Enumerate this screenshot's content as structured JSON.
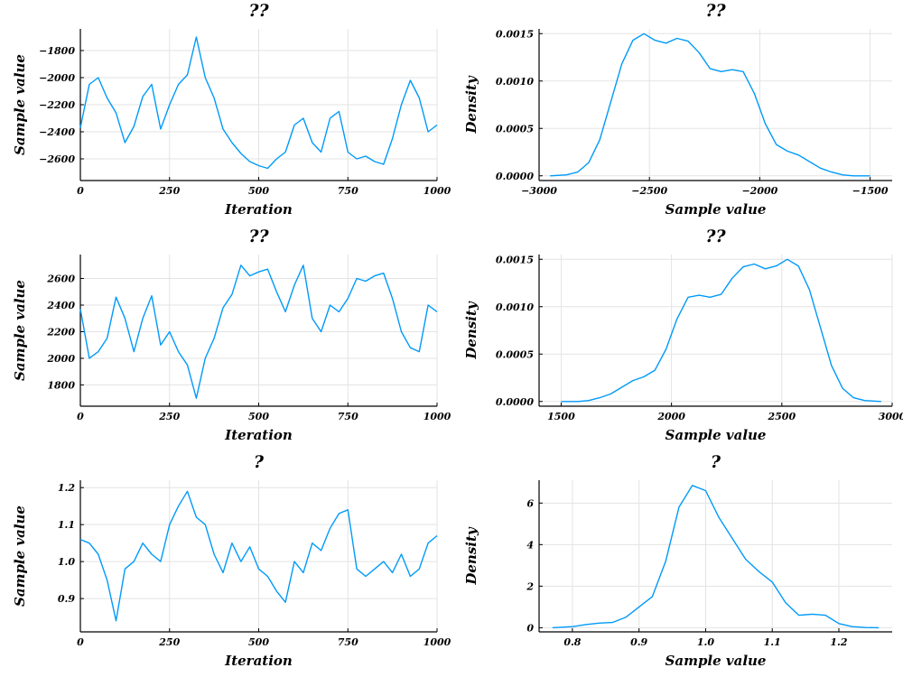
{
  "chart_data": [
    {
      "type": "line",
      "panel": "trace",
      "title": "??",
      "xlabel": "Iteration",
      "ylabel": "Sample value",
      "xlim": [
        0,
        1000
      ],
      "ylim": [
        -2760,
        -1640
      ],
      "xticks": [
        0,
        250,
        500,
        750,
        1000
      ],
      "xtick_labels": [
        "0",
        "250",
        "500",
        "750",
        "1000"
      ],
      "yticks": [
        -2600,
        -2400,
        -2200,
        -2000,
        -1800
      ],
      "ytick_labels": [
        "-2600",
        "-2400",
        "-2200",
        "-2000",
        "-1800"
      ],
      "grid": true,
      "legend": false,
      "series_color": "#009af9",
      "x": [
        0,
        25,
        50,
        75,
        100,
        125,
        150,
        175,
        200,
        225,
        250,
        275,
        300,
        325,
        350,
        375,
        400,
        425,
        450,
        475,
        500,
        525,
        550,
        575,
        600,
        625,
        650,
        675,
        700,
        725,
        750,
        775,
        800,
        825,
        850,
        875,
        900,
        925,
        950,
        975,
        1000
      ],
      "y": [
        -2370,
        -2050,
        -2000,
        -2150,
        -2260,
        -2480,
        -2360,
        -2140,
        -2050,
        -2380,
        -2200,
        -2050,
        -1980,
        -1700,
        -2000,
        -2150,
        -2380,
        -2480,
        -2560,
        -2620,
        -2650,
        -2670,
        -2600,
        -2550,
        -2350,
        -2300,
        -2480,
        -2550,
        -2300,
        -2250,
        -2550,
        -2600,
        -2580,
        -2620,
        -2640,
        -2450,
        -2200,
        -2020,
        -2150,
        -2400,
        -2350
      ]
    },
    {
      "type": "line",
      "panel": "density",
      "title": "??",
      "xlabel": "Sample value",
      "ylabel": "Density",
      "xlim": [
        -3000,
        -1400
      ],
      "ylim": [
        -5e-05,
        0.00155
      ],
      "xticks": [
        -3000,
        -2500,
        -2000,
        -1500
      ],
      "xtick_labels": [
        "-3000",
        "-2500",
        "-2000",
        "-1500"
      ],
      "yticks": [
        0,
        0.0005,
        0.001,
        0.0015
      ],
      "ytick_labels": [
        "0.0000",
        "0.0005",
        "0.0010",
        "0.0015"
      ],
      "grid": true,
      "legend": false,
      "series_color": "#009af9",
      "x": [
        -2950,
        -2875,
        -2825,
        -2775,
        -2725,
        -2675,
        -2625,
        -2575,
        -2525,
        -2475,
        -2425,
        -2375,
        -2325,
        -2275,
        -2225,
        -2175,
        -2125,
        -2075,
        -2025,
        -1975,
        -1925,
        -1875,
        -1825,
        -1775,
        -1725,
        -1675,
        -1625,
        -1575,
        -1500
      ],
      "y": [
        0,
        1e-05,
        4e-05,
        0.00014,
        0.00038,
        0.00078,
        0.00118,
        0.00143,
        0.0015,
        0.00143,
        0.0014,
        0.00145,
        0.00142,
        0.0013,
        0.00113,
        0.0011,
        0.00112,
        0.0011,
        0.00087,
        0.00055,
        0.00033,
        0.00026,
        0.00022,
        0.00015,
        8e-05,
        4e-05,
        1e-05,
        0,
        0
      ]
    },
    {
      "type": "line",
      "panel": "trace",
      "title": "??",
      "xlabel": "Iteration",
      "ylabel": "Sample value",
      "xlim": [
        0,
        1000
      ],
      "ylim": [
        1640,
        2780
      ],
      "xticks": [
        0,
        250,
        500,
        750,
        1000
      ],
      "xtick_labels": [
        "0",
        "250",
        "500",
        "750",
        "1000"
      ],
      "yticks": [
        1800,
        2000,
        2200,
        2400,
        2600
      ],
      "ytick_labels": [
        "1800",
        "2000",
        "2200",
        "2400",
        "2600"
      ],
      "grid": true,
      "legend": false,
      "series_color": "#009af9",
      "x": [
        0,
        25,
        50,
        75,
        100,
        125,
        150,
        175,
        200,
        225,
        250,
        275,
        300,
        325,
        350,
        375,
        400,
        425,
        450,
        475,
        500,
        525,
        550,
        575,
        600,
        625,
        650,
        675,
        700,
        725,
        750,
        775,
        800,
        825,
        850,
        875,
        900,
        925,
        950,
        975,
        1000
      ],
      "y": [
        2370,
        2000,
        2050,
        2150,
        2460,
        2300,
        2050,
        2300,
        2470,
        2100,
        2200,
        2050,
        1950,
        1700,
        2000,
        2150,
        2380,
        2480,
        2700,
        2620,
        2650,
        2670,
        2500,
        2350,
        2550,
        2700,
        2300,
        2200,
        2400,
        2350,
        2450,
        2600,
        2580,
        2620,
        2640,
        2450,
        2200,
        2080,
        2050,
        2400,
        2350
      ]
    },
    {
      "type": "line",
      "panel": "density",
      "title": "??",
      "xlabel": "Sample value",
      "ylabel": "Density",
      "xlim": [
        1400,
        3000
      ],
      "ylim": [
        -5e-05,
        0.00155
      ],
      "xticks": [
        1500,
        2000,
        2500,
        3000
      ],
      "xtick_labels": [
        "1500",
        "2000",
        "2500",
        "3000"
      ],
      "grid": true,
      "legend": false,
      "yticks": [
        0,
        0.0005,
        0.001,
        0.0015
      ],
      "ytick_labels": [
        "0.0000",
        "0.0005",
        "0.0010",
        "0.0015"
      ],
      "series_color": "#009af9",
      "x": [
        1500,
        1575,
        1625,
        1675,
        1725,
        1775,
        1825,
        1875,
        1925,
        1975,
        2025,
        2075,
        2125,
        2175,
        2225,
        2275,
        2325,
        2375,
        2425,
        2475,
        2525,
        2575,
        2625,
        2675,
        2725,
        2775,
        2825,
        2875,
        2950
      ],
      "y": [
        0,
        0,
        1e-05,
        4e-05,
        8e-05,
        0.00015,
        0.00022,
        0.00026,
        0.00033,
        0.00055,
        0.00087,
        0.0011,
        0.00112,
        0.0011,
        0.00113,
        0.0013,
        0.00142,
        0.00145,
        0.0014,
        0.00143,
        0.0015,
        0.00143,
        0.00118,
        0.00078,
        0.00038,
        0.00014,
        4e-05,
        1e-05,
        0
      ]
    },
    {
      "type": "line",
      "panel": "trace",
      "title": "?",
      "xlabel": "Iteration",
      "ylabel": "Sample value",
      "xlim": [
        0,
        1000
      ],
      "ylim": [
        0.81,
        1.22
      ],
      "xticks": [
        0,
        250,
        500,
        750,
        1000
      ],
      "xtick_labels": [
        "0",
        "250",
        "500",
        "750",
        "1000"
      ],
      "yticks": [
        0.9,
        1.0,
        1.1,
        1.2
      ],
      "ytick_labels": [
        "0.9",
        "1.0",
        "1.1",
        "1.2"
      ],
      "grid": true,
      "legend": false,
      "series_color": "#009af9",
      "x": [
        0,
        25,
        50,
        75,
        100,
        125,
        150,
        175,
        200,
        225,
        250,
        275,
        300,
        325,
        350,
        375,
        400,
        425,
        450,
        475,
        500,
        525,
        550,
        575,
        600,
        625,
        650,
        675,
        700,
        725,
        750,
        775,
        800,
        825,
        850,
        875,
        900,
        925,
        950,
        975,
        1000
      ],
      "y": [
        1.06,
        1.05,
        1.02,
        0.95,
        0.84,
        0.98,
        1.0,
        1.05,
        1.02,
        1.0,
        1.1,
        1.15,
        1.19,
        1.12,
        1.1,
        1.02,
        0.97,
        1.05,
        1.0,
        1.04,
        0.98,
        0.96,
        0.92,
        0.89,
        1.0,
        0.97,
        1.05,
        1.03,
        1.09,
        1.13,
        1.14,
        0.98,
        0.96,
        0.98,
        1.0,
        0.97,
        1.02,
        0.96,
        0.98,
        1.05,
        1.07
      ]
    },
    {
      "type": "line",
      "panel": "density",
      "title": "?",
      "xlabel": "Sample value",
      "ylabel": "Density",
      "xlim": [
        0.75,
        1.28
      ],
      "ylim": [
        -0.2,
        7.1
      ],
      "xticks": [
        0.8,
        0.9,
        1.0,
        1.1,
        1.2
      ],
      "xtick_labels": [
        "0.8",
        "0.9",
        "1.0",
        "1.1",
        "1.2"
      ],
      "yticks": [
        0,
        2,
        4,
        6
      ],
      "ytick_labels": [
        "0",
        "2",
        "4",
        "6"
      ],
      "grid": true,
      "legend": false,
      "series_color": "#009af9",
      "x": [
        0.77,
        0.8,
        0.82,
        0.84,
        0.86,
        0.88,
        0.9,
        0.92,
        0.94,
        0.96,
        0.98,
        1.0,
        1.02,
        1.04,
        1.06,
        1.08,
        1.1,
        1.12,
        1.14,
        1.16,
        1.18,
        1.2,
        1.22,
        1.24,
        1.26
      ],
      "y": [
        0,
        0.05,
        0.15,
        0.22,
        0.25,
        0.5,
        1.0,
        1.5,
        3.2,
        5.8,
        6.85,
        6.6,
        5.3,
        4.3,
        3.3,
        2.7,
        2.2,
        1.2,
        0.6,
        0.65,
        0.6,
        0.2,
        0.05,
        0.01,
        0
      ]
    }
  ]
}
